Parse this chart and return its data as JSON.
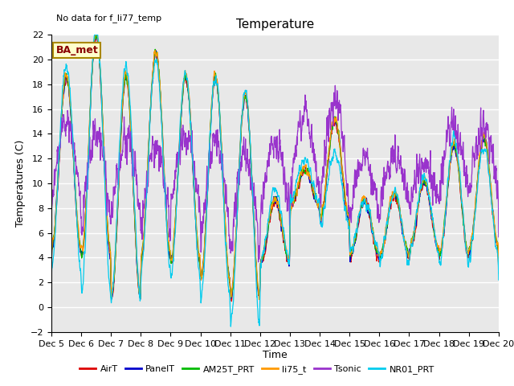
{
  "title": "Temperature",
  "ylabel": "Temperatures (C)",
  "xlabel": "Time",
  "no_data_text": "No data for f_li77_temp",
  "ba_met_label": "BA_met",
  "ylim": [
    -2,
    22
  ],
  "yticks": [
    -2,
    0,
    2,
    4,
    6,
    8,
    10,
    12,
    14,
    16,
    18,
    20,
    22
  ],
  "xtick_labels": [
    "Dec 5",
    "Dec 6",
    "Dec 7",
    "Dec 8",
    "Dec 9",
    "Dec 10",
    "Dec 11",
    "Dec 12",
    "Dec 13",
    "Dec 14",
    "Dec 15",
    "Dec 16",
    "Dec 17",
    "Dec 18",
    "Dec 19",
    "Dec 20"
  ],
  "series_colors": {
    "AirT": "#dd0000",
    "PanelT": "#0000cc",
    "AM25T_PRT": "#00bb00",
    "li75_t": "#ff9900",
    "Tsonic": "#9933cc",
    "NR01_PRT": "#00ccee"
  },
  "legend_order": [
    "AirT",
    "PanelT",
    "AM25T_PRT",
    "li75_t",
    "Tsonic",
    "NR01_PRT"
  ],
  "bg_color": "#e8e8e8",
  "fig_bg": "#ffffff",
  "title_fontsize": 11,
  "label_fontsize": 9,
  "tick_fontsize": 8
}
